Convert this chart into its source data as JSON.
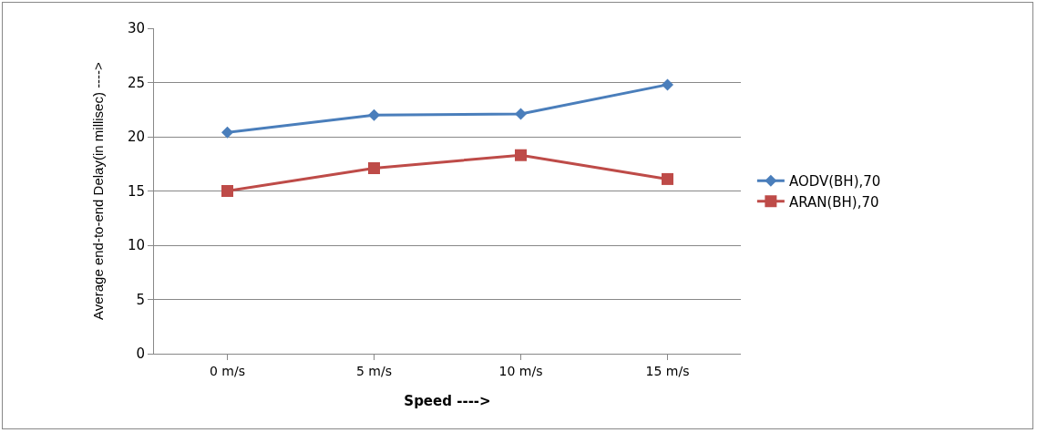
{
  "chart_data": {
    "type": "line",
    "xlabel": "Speed ---->",
    "ylabel": "Average end-to-end Delay(in millisec) ---->",
    "categories": [
      "0 m/s",
      "5 m/s",
      "10 m/s",
      "15 m/s"
    ],
    "series": [
      {
        "name": "AODV(BH),70",
        "color": "#4a7ebb",
        "marker": "diamond",
        "values": [
          20.4,
          22.0,
          22.1,
          24.8
        ]
      },
      {
        "name": "ARAN(BH),70",
        "color": "#be4b48",
        "marker": "square",
        "values": [
          15.0,
          17.1,
          18.3,
          16.1
        ]
      }
    ],
    "ylim": [
      0,
      30
    ],
    "yticks": [
      0,
      5,
      10,
      15,
      20,
      25,
      30
    ],
    "grid": "y",
    "legend": "right",
    "line_style": "solid"
  }
}
